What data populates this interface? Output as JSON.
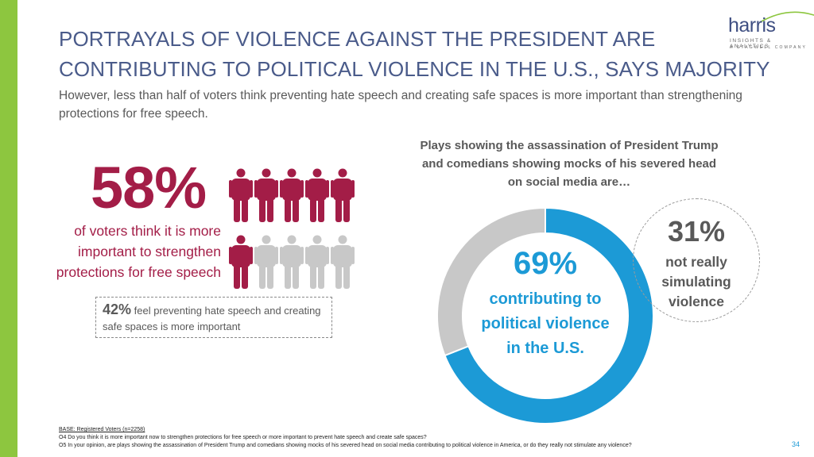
{
  "header": {
    "title_line1": "PORTRAYALS OF VIOLENCE AGAINST THE PRESIDENT ARE",
    "title_line2": "CONTRIBUTING TO POLITICAL VIOLENCE IN THE U.S., SAYS MAJORITY",
    "subtitle": "However, less than half of voters think preventing hate speech and creating safe spaces is more important than strengthening protections for free speech."
  },
  "logo": {
    "word": "harris",
    "line1": "INSIGHTS & ANALYTICS",
    "line2": "A STAGWELL COMPANY"
  },
  "left_stat": {
    "percent": "58%",
    "description": "of voters think it is more important to strengthen protections for free speech",
    "box_percent": "42%",
    "box_text": " feel preventing hate speech and creating safe spaces is more important"
  },
  "right_chart": {
    "question": "Plays showing the assassination of President Trump and comedians showing mocks of his severed head on social media are…",
    "main_percent": "69%",
    "main_label": "contributing to political violence in the U.S.",
    "callout_percent": "31%",
    "callout_label": "not really simulating violence"
  },
  "chart_data": [
    {
      "type": "pictograph",
      "total_icons": 10,
      "highlighted_icons": 6,
      "series": [
        {
          "label": "of voters think it is more important to strengthen protections for free speech",
          "value": 58,
          "color": "#a31d47"
        },
        {
          "label": "feel preventing hate speech and creating safe spaces is more important",
          "value": 42,
          "color": "#c8c8c8"
        }
      ]
    },
    {
      "type": "pie",
      "donut": true,
      "title": "Plays showing the assassination of President Trump and comedians showing mocks of his severed head on social media are…",
      "categories": [
        "contributing to political violence in the U.S.",
        "not really simulating violence"
      ],
      "values": [
        69,
        31
      ],
      "colors": [
        "#1c9ad6",
        "#c8c8c8"
      ]
    }
  ],
  "footer": {
    "base": "BASE: Registered Voters (n=2258)",
    "q4": "O4 Do you think it is more important now to strengthen protections for free speech or more important to prevent hate speech and create safe spaces?",
    "q5": "O5 In your opinion, are plays showing the assassination of President Trump and comedians showing mocks of his severed head on social media contributing to political violence in America, or do they really not stimulate any violence?",
    "page": "34"
  },
  "colors": {
    "accent_green": "#8dc63f",
    "title_blue": "#4a5b8a",
    "maroon": "#a31d47",
    "donut_blue": "#1c9ad6",
    "gray": "#c8c8c8"
  }
}
